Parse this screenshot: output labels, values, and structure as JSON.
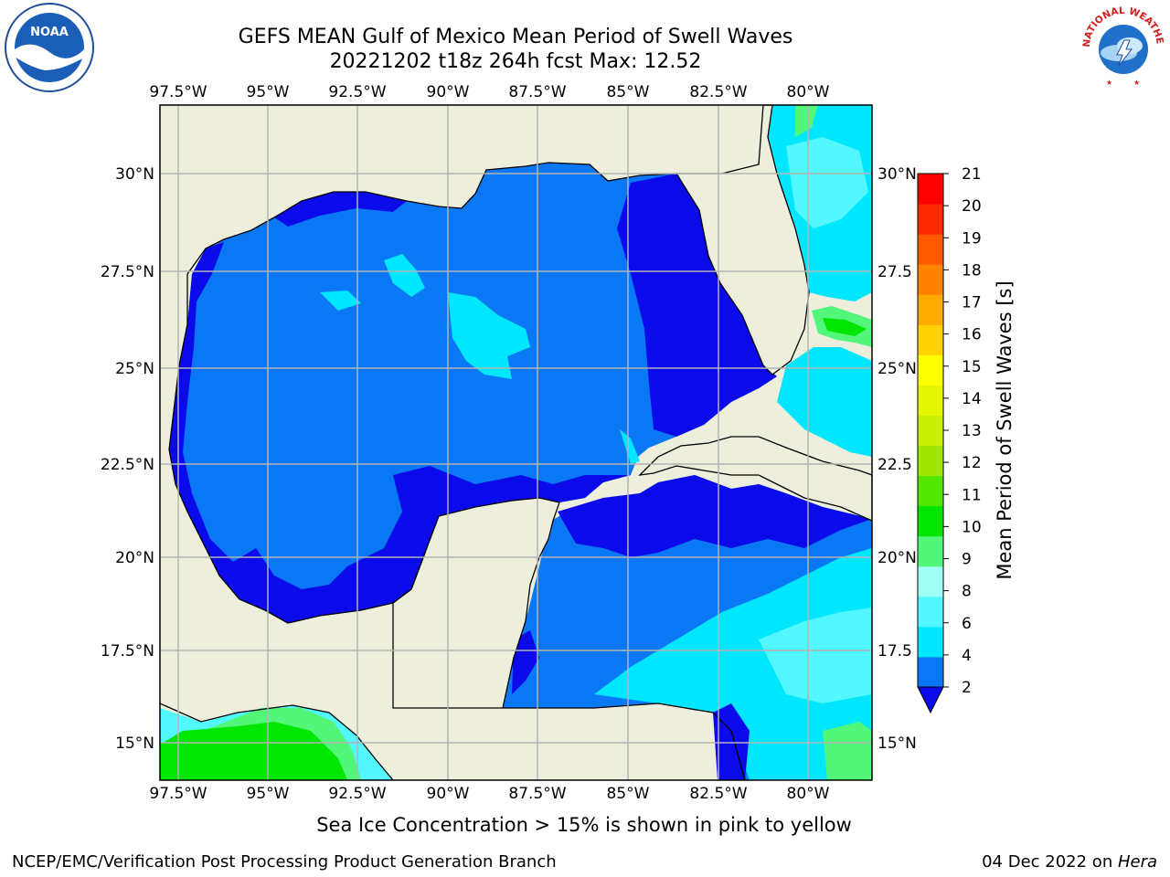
{
  "title": {
    "line1": "GEFS MEAN Gulf of Mexico Mean Period of Swell Waves",
    "line2": "20221202 t18z 264h fcst   Max: 12.52"
  },
  "logos": {
    "noaa": "NOAA",
    "nws": "NATIONAL WEATHER SERVICE"
  },
  "map": {
    "lon_labels": [
      "97.5°W",
      "95°W",
      "92.5°W",
      "90°W",
      "87.5°W",
      "85°W",
      "82.5°W",
      "80°W"
    ],
    "lat_labels_left": [
      "30°N",
      "27.5°N",
      "25°N",
      "22.5°N",
      "20°N",
      "17.5°N",
      "15°N"
    ],
    "lat_labels_right": [
      "30°N",
      "27.5",
      "25°N",
      "22.5",
      "20°N",
      "17.5",
      "15°N"
    ],
    "colors": {
      "land": "#eeeedc",
      "ocean_mid": "#0a78f5",
      "ocean_dark": "#0a0aeb",
      "cyan": "#00e6ff",
      "light_cyan": "#52f7ff",
      "green": "#52f77a",
      "bright_green": "#00e600"
    }
  },
  "colorbar": {
    "label": "Mean Period of Swell Waves [s]",
    "ticks": [
      "2",
      "4",
      "6",
      "8",
      "9",
      "10",
      "11",
      "12",
      "13",
      "14",
      "15",
      "16",
      "17",
      "18",
      "19",
      "20",
      "21"
    ],
    "colors": [
      "#0a78f5",
      "#00e6ff",
      "#52f7ff",
      "#a0fff7",
      "#52f77a",
      "#00e600",
      "#52e600",
      "#a0e600",
      "#c8f000",
      "#e6f500",
      "#ffff00",
      "#ffd200",
      "#ffaa00",
      "#ff8200",
      "#ff5a00",
      "#ff2a00",
      "#ff0000"
    ],
    "extend_color": "#0a0aeb"
  },
  "note": "Sea Ice Concentration > 15% is shown in pink to yellow",
  "footer": {
    "left": "NCEP/EMC/Verification Post Processing Product Generation Branch",
    "date": "04 Dec 2022 on ",
    "host": "Hera"
  }
}
